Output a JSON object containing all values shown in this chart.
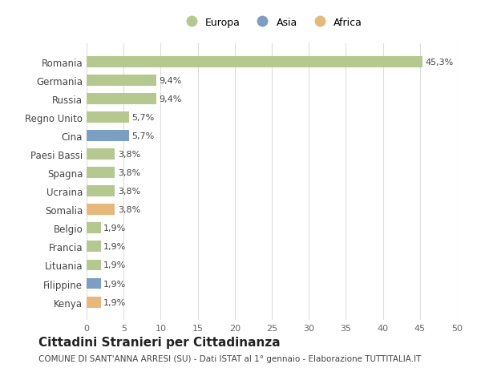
{
  "countries": [
    "Romania",
    "Germania",
    "Russia",
    "Regno Unito",
    "Cina",
    "Paesi Bassi",
    "Spagna",
    "Ucraina",
    "Somalia",
    "Belgio",
    "Francia",
    "Lituania",
    "Filippine",
    "Kenya"
  ],
  "values": [
    45.3,
    9.4,
    9.4,
    5.7,
    5.7,
    3.8,
    3.8,
    3.8,
    3.8,
    1.9,
    1.9,
    1.9,
    1.9,
    1.9
  ],
  "labels": [
    "45,3%",
    "9,4%",
    "9,4%",
    "5,7%",
    "5,7%",
    "3,8%",
    "3,8%",
    "3,8%",
    "3,8%",
    "1,9%",
    "1,9%",
    "1,9%",
    "1,9%",
    "1,9%"
  ],
  "continents": [
    "Europa",
    "Europa",
    "Europa",
    "Europa",
    "Asia",
    "Europa",
    "Europa",
    "Europa",
    "Africa",
    "Europa",
    "Europa",
    "Europa",
    "Asia",
    "Africa"
  ],
  "colors": {
    "Europa": "#b5c98e",
    "Asia": "#7b9ec5",
    "Africa": "#e8b87a"
  },
  "legend_order": [
    "Europa",
    "Asia",
    "Africa"
  ],
  "xlim": [
    0,
    50
  ],
  "xticks": [
    0,
    5,
    10,
    15,
    20,
    25,
    30,
    35,
    40,
    45,
    50
  ],
  "title": "Cittadini Stranieri per Cittadinanza",
  "subtitle": "COMUNE DI SANT'ANNA ARRESI (SU) - Dati ISTAT al 1° gennaio - Elaborazione TUTTITALIA.IT",
  "background_color": "#ffffff",
  "grid_color": "#dddddd",
  "bar_height": 0.6
}
